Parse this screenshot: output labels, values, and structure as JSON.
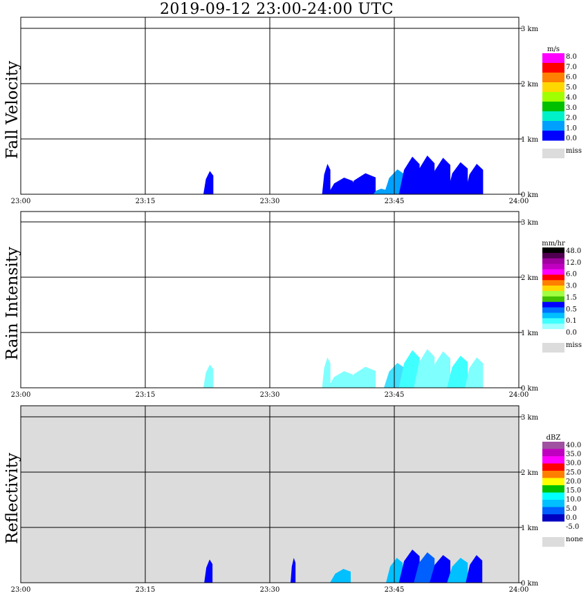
{
  "title": "2019-09-12   23:00-24:00 UTC",
  "x_ticks": [
    "23:00",
    "23:15",
    "23:30",
    "23:45",
    "24:00"
  ],
  "y_ticks": [
    "0 km",
    "1 km",
    "2 km",
    "3 km"
  ],
  "chart_data": [
    {
      "type": "heatmap",
      "title": "Fall Velocity",
      "ylabel": "Fall Velocity",
      "x_range": [
        "23:00",
        "24:00"
      ],
      "ylim_km": [
        0,
        3.2
      ],
      "colorbar": {
        "unit": "m/s",
        "labels": [
          "8.0",
          "7.0",
          "6.0",
          "5.0",
          "4.0",
          "3.0",
          "2.0",
          "1.0",
          "0.0"
        ],
        "colors": [
          "#ff00ff",
          "#ff0000",
          "#ff7f00",
          "#ffd700",
          "#a0ff00",
          "#00c000",
          "#00f0c8",
          "#00a0ff",
          "#0000ff"
        ],
        "missing_label": "miss",
        "missing_color": "#dcdcdc"
      },
      "background": "#ffffff",
      "echoes": [
        {
          "t": 22.6,
          "top_km": 0.42,
          "w": 1.2,
          "c": "#0000ff"
        },
        {
          "t": 36.8,
          "top_km": 0.55,
          "w": 1.0,
          "c": "#0000ff"
        },
        {
          "t": 38.5,
          "top_km": 0.3,
          "w": 3.0,
          "c": "#0000ff"
        },
        {
          "t": 41.0,
          "top_km": 0.38,
          "w": 3.5,
          "c": "#0000ff"
        },
        {
          "t": 43.2,
          "top_km": 0.1,
          "w": 1.5,
          "c": "#00a0ff"
        },
        {
          "t": 45.0,
          "top_km": 0.45,
          "w": 2.5,
          "c": "#00a0ff"
        },
        {
          "t": 46.8,
          "top_km": 0.68,
          "w": 2.5,
          "c": "#0000ff"
        },
        {
          "t": 48.6,
          "top_km": 0.7,
          "w": 2.5,
          "c": "#0000ff"
        },
        {
          "t": 50.5,
          "top_km": 0.66,
          "w": 2.5,
          "c": "#0000ff"
        },
        {
          "t": 52.6,
          "top_km": 0.58,
          "w": 2.5,
          "c": "#0000ff"
        },
        {
          "t": 54.6,
          "top_km": 0.55,
          "w": 2.2,
          "c": "#0000ff"
        }
      ]
    },
    {
      "type": "heatmap",
      "title": "Rain Intensity",
      "ylabel": "Rain Intensity",
      "x_range": [
        "23:00",
        "24:00"
      ],
      "ylim_km": [
        0,
        3.2
      ],
      "colorbar": {
        "unit": "mm/hr",
        "labels": [
          "48.0",
          "12.0",
          "6.0",
          "3.0",
          "1.5",
          "0.5",
          "0.1",
          "0.0"
        ],
        "colors": [
          "#000000",
          "#500050",
          "#a000a0",
          "#c000c0",
          "#ff00ff",
          "#ff0000",
          "#ff7f00",
          "#ffd700",
          "#a0ff40",
          "#40c000",
          "#0000ff",
          "#0070ff",
          "#00c0ff",
          "#40ffff",
          "#a0ffff",
          "#ffffff"
        ],
        "missing_label": "miss",
        "missing_color": "#dcdcdc"
      },
      "background": "#ffffff",
      "echoes": [
        {
          "t": 22.6,
          "top_km": 0.42,
          "w": 1.2,
          "c": "#80ffff"
        },
        {
          "t": 36.8,
          "top_km": 0.55,
          "w": 1.0,
          "c": "#80ffff"
        },
        {
          "t": 38.5,
          "top_km": 0.3,
          "w": 3.0,
          "c": "#80ffff"
        },
        {
          "t": 41.0,
          "top_km": 0.38,
          "w": 3.5,
          "c": "#80ffff"
        },
        {
          "t": 45.0,
          "top_km": 0.45,
          "w": 2.5,
          "c": "#40e0ff"
        },
        {
          "t": 46.8,
          "top_km": 0.68,
          "w": 2.5,
          "c": "#40ffff"
        },
        {
          "t": 48.6,
          "top_km": 0.7,
          "w": 2.5,
          "c": "#80ffff"
        },
        {
          "t": 50.5,
          "top_km": 0.66,
          "w": 2.5,
          "c": "#80ffff"
        },
        {
          "t": 52.6,
          "top_km": 0.58,
          "w": 2.5,
          "c": "#40ffff"
        },
        {
          "t": 54.6,
          "top_km": 0.55,
          "w": 2.2,
          "c": "#80ffff"
        }
      ]
    },
    {
      "type": "heatmap",
      "title": "Reflectivity",
      "ylabel": "Reflectivity",
      "x_range": [
        "23:00",
        "24:00"
      ],
      "ylim_km": [
        0,
        3.2
      ],
      "colorbar": {
        "unit": "dBZ",
        "labels": [
          "40.0",
          "35.0",
          "30.0",
          "25.0",
          "20.0",
          "15.0",
          "10.0",
          "5.0",
          "0.0",
          "-5.0"
        ],
        "colors": [
          "#a050a0",
          "#c000c0",
          "#ff00ff",
          "#ff0000",
          "#ff7f00",
          "#ffff00",
          "#00c000",
          "#00ffff",
          "#00c0ff",
          "#0060ff",
          "#0000c0",
          "#ffffff"
        ],
        "missing_label": "none",
        "missing_color": "#dcdcdc"
      },
      "background": "#dcdcdc",
      "echoes": [
        {
          "t": 22.6,
          "top_km": 0.42,
          "w": 1.0,
          "c": "#0000ff"
        },
        {
          "t": 32.8,
          "top_km": 0.45,
          "w": 0.6,
          "c": "#0000ff"
        },
        {
          "t": 38.5,
          "top_km": 0.25,
          "w": 2.5,
          "c": "#00c0ff"
        },
        {
          "t": 45.0,
          "top_km": 0.45,
          "w": 2.0,
          "c": "#00c0ff"
        },
        {
          "t": 46.8,
          "top_km": 0.6,
          "w": 2.5,
          "c": "#0000ff"
        },
        {
          "t": 48.6,
          "top_km": 0.55,
          "w": 2.5,
          "c": "#0060ff"
        },
        {
          "t": 50.5,
          "top_km": 0.5,
          "w": 2.5,
          "c": "#0000ff"
        },
        {
          "t": 52.6,
          "top_km": 0.45,
          "w": 2.5,
          "c": "#00c0ff"
        },
        {
          "t": 54.6,
          "top_km": 0.5,
          "w": 2.0,
          "c": "#0000ff"
        }
      ]
    }
  ]
}
